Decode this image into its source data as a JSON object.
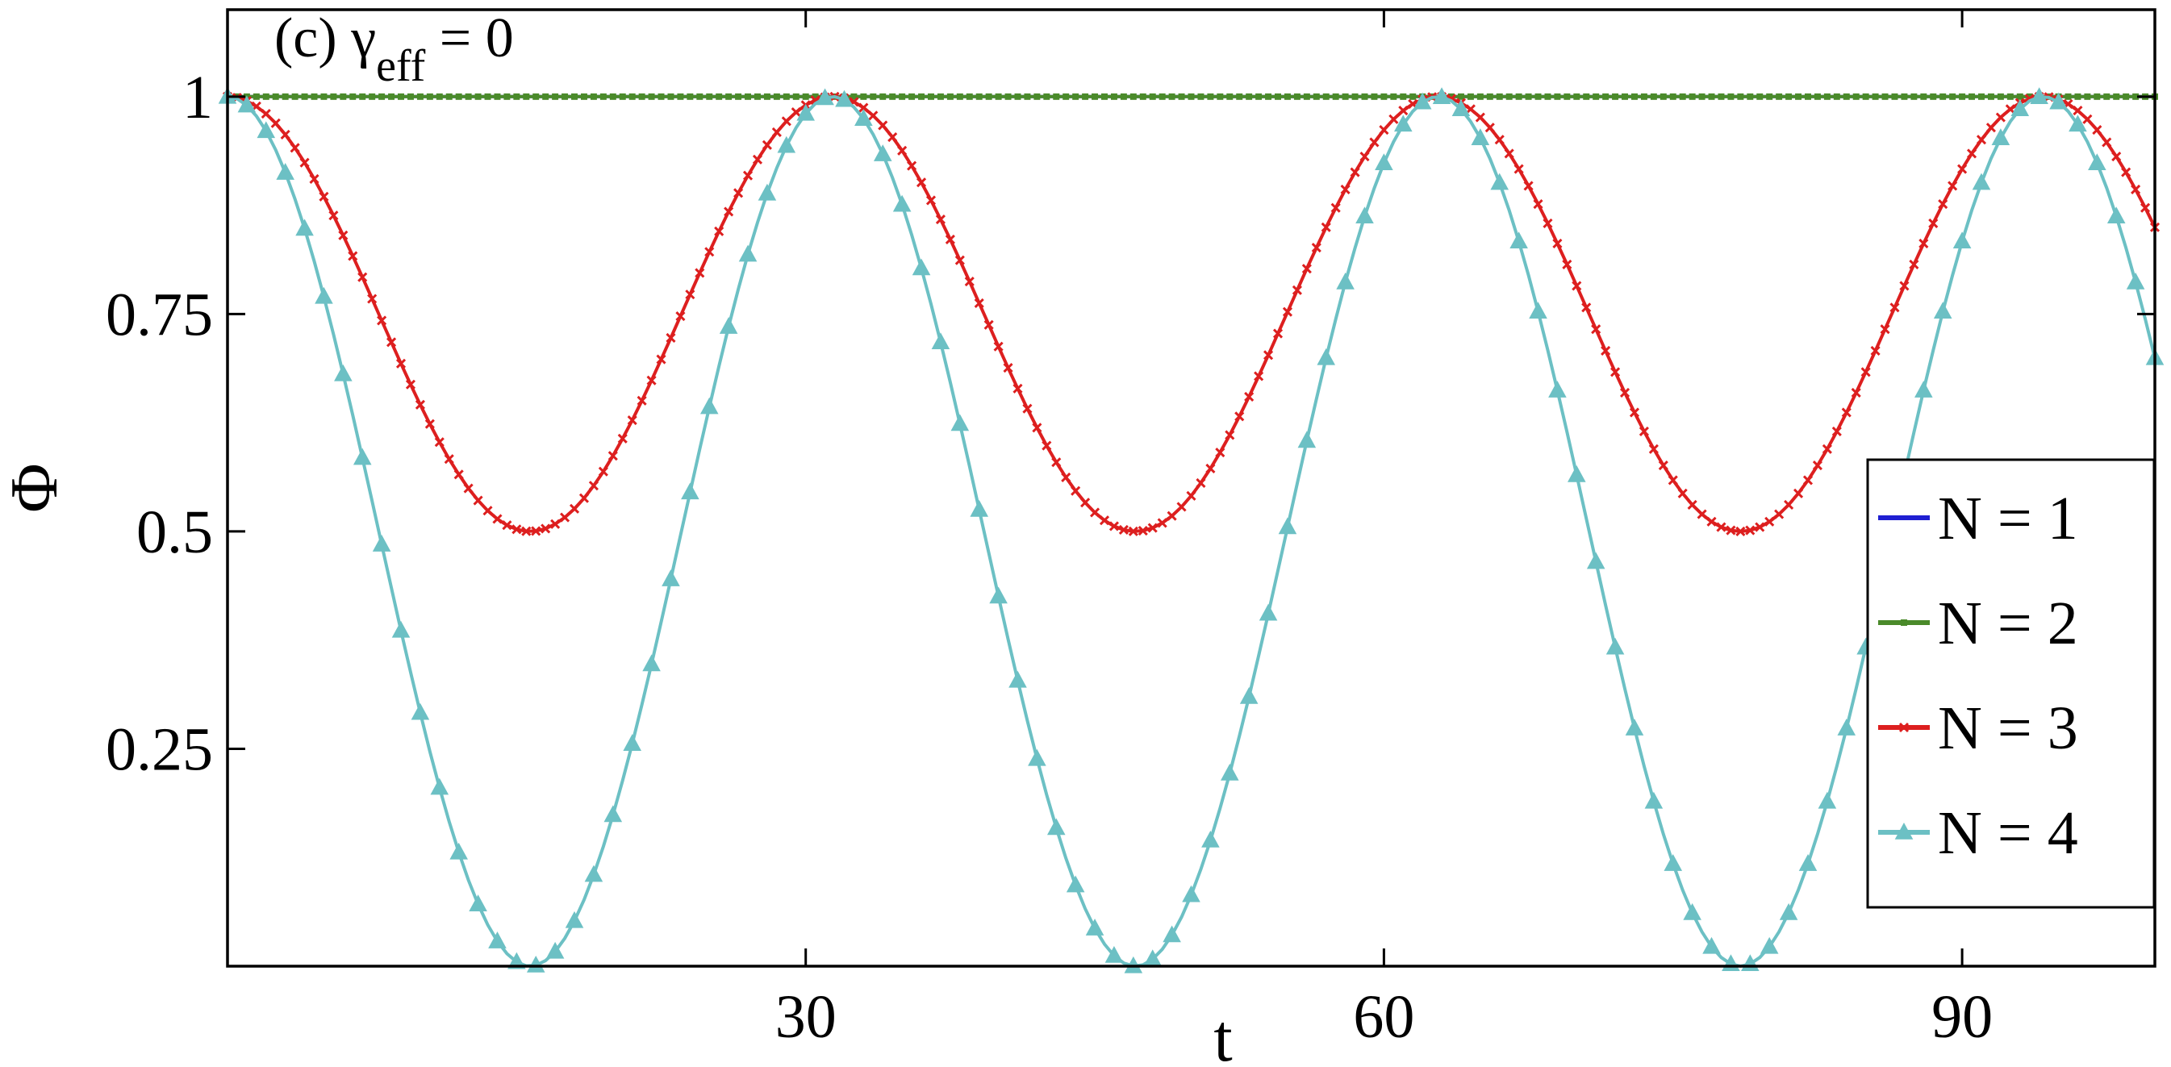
{
  "chart_data": {
    "type": "line",
    "annotation": {
      "prefix": "(c) γ",
      "subscript": "eff",
      "suffix": " = 0"
    },
    "xlabel": "t",
    "ylabel": "Φ",
    "xlim": [
      0,
      100
    ],
    "ylim": [
      0,
      1.1
    ],
    "x_ticks": [
      30,
      60,
      90
    ],
    "x_tick_labels": [
      "30",
      "60",
      "90"
    ],
    "y_ticks": [
      0.25,
      0.5,
      0.75,
      1
    ],
    "y_tick_labels": [
      "0.25",
      "0.5",
      "0.75",
      "1"
    ],
    "grid": false,
    "legend_position": "right",
    "x": {
      "start": 0,
      "end": 100,
      "step": 0.5
    },
    "series": [
      {
        "name": "N = 1",
        "color": "#1f1fd2",
        "marker": "none",
        "model": "constant",
        "value": 1.0
      },
      {
        "name": "N = 2",
        "color": "#4a8a2a",
        "marker": "square",
        "model": "constant",
        "value": 1.0
      },
      {
        "name": "N = 3",
        "color": "#dd1f1f",
        "marker": "cross",
        "model": "cos2-mixture",
        "period": 31.4,
        "min": 0.5
      },
      {
        "name": "N = 4",
        "color": "#6cc0c4",
        "marker": "triangle",
        "model": "cos2-mixture",
        "period": 31.4,
        "min": 0.0
      }
    ],
    "colors": {
      "axis": "#000000",
      "background": "#ffffff"
    }
  }
}
